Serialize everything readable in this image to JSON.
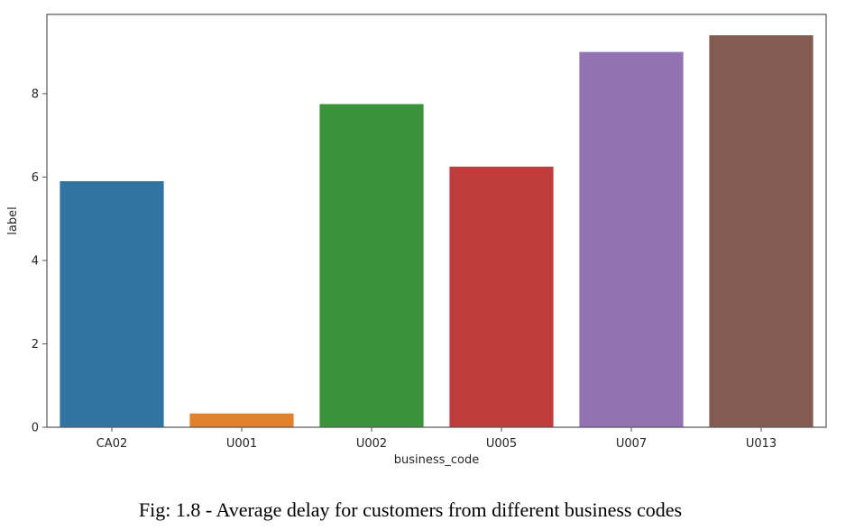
{
  "caption": "Fig: 1.8 - Average delay for customers from different business codes",
  "chart_data": {
    "type": "bar",
    "title": "",
    "xlabel": "business_code",
    "ylabel": "label",
    "categories": [
      "CA02",
      "U001",
      "U002",
      "U005",
      "U007",
      "U013"
    ],
    "values": [
      5.9,
      0.33,
      7.75,
      6.25,
      9.0,
      9.4
    ],
    "colors": [
      "#3274a1",
      "#e1812c",
      "#3a923a",
      "#c03d3e",
      "#9372b2",
      "#845b53"
    ],
    "ylim": [
      0,
      9.9
    ],
    "yticks": [
      0,
      2,
      4,
      6,
      8
    ],
    "grid": false
  }
}
